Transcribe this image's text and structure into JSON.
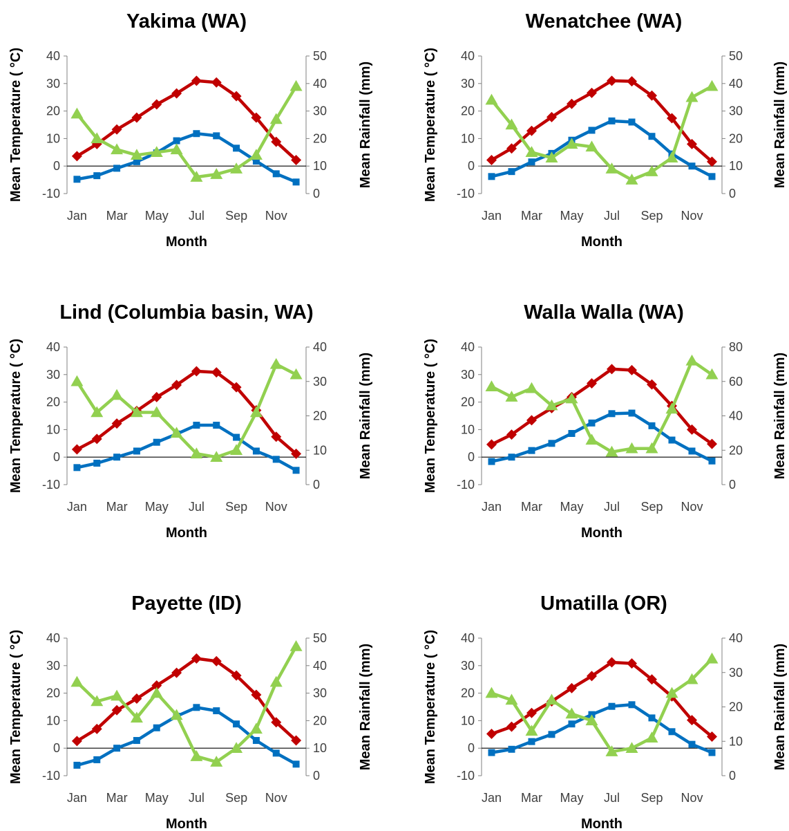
{
  "chart_data": [
    {
      "type": "line",
      "title": "Yakima (WA)",
      "xlabel": "Month",
      "ylabel": "Mean Temperature ( °C)",
      "y2label": "Mean Rainfall (mm)",
      "categories": [
        "Jan",
        "Feb",
        "Mar",
        "Apr",
        "May",
        "Jun",
        "Jul",
        "Aug",
        "Sep",
        "Oct",
        "Nov",
        "Dec"
      ],
      "x_tick_labels": [
        "Jan",
        "",
        "Mar",
        "",
        "May",
        "",
        "Jul",
        "",
        "Sep",
        "",
        "Nov",
        ""
      ],
      "ylim": [
        -10,
        40
      ],
      "y_ticks": [
        -10,
        0,
        10,
        20,
        30,
        40
      ],
      "y2lim": [
        0,
        50
      ],
      "y2_ticks": [
        0,
        10,
        20,
        30,
        40,
        50
      ],
      "series": [
        {
          "axis": "left",
          "color": "#C00000",
          "marker": "diamond",
          "values": [
            3.6,
            8.0,
            13.3,
            17.6,
            22.4,
            26.4,
            31.0,
            30.4,
            25.4,
            17.6,
            8.8,
            2.2
          ]
        },
        {
          "axis": "left",
          "color": "#0070C0",
          "marker": "square",
          "values": [
            -4.8,
            -3.5,
            -0.8,
            1.6,
            4.8,
            9.2,
            11.8,
            11.0,
            6.5,
            1.8,
            -2.8,
            -5.8
          ]
        },
        {
          "axis": "right",
          "color": "#92D050",
          "marker": "triangle",
          "values": [
            29,
            20,
            16,
            14,
            15,
            16,
            6,
            7,
            9,
            14,
            27,
            39
          ]
        }
      ]
    },
    {
      "type": "line",
      "title": "Wenatchee (WA)",
      "xlabel": "Month",
      "ylabel": "Mean Temperature ( °C)",
      "y2label": "Mean Rainfall (mm)",
      "categories": [
        "Jan",
        "Feb",
        "Mar",
        "Apr",
        "May",
        "Jun",
        "Jul",
        "Aug",
        "Sep",
        "Oct",
        "Nov",
        "Dec"
      ],
      "x_tick_labels": [
        "Jan",
        "",
        "Mar",
        "",
        "May",
        "",
        "Jul",
        "",
        "Sep",
        "",
        "Nov",
        ""
      ],
      "ylim": [
        -10,
        40
      ],
      "y_ticks": [
        -10,
        0,
        10,
        20,
        30,
        40
      ],
      "y2lim": [
        0,
        50
      ],
      "y2_ticks": [
        0,
        10,
        20,
        30,
        40,
        50
      ],
      "series": [
        {
          "axis": "left",
          "color": "#C00000",
          "marker": "diamond",
          "values": [
            2.2,
            6.4,
            12.8,
            17.8,
            22.6,
            26.6,
            31.0,
            30.8,
            25.6,
            17.4,
            8.0,
            1.6
          ]
        },
        {
          "axis": "left",
          "color": "#0070C0",
          "marker": "square",
          "values": [
            -3.8,
            -2.0,
            1.5,
            4.6,
            9.4,
            13.0,
            16.4,
            16.0,
            10.8,
            4.4,
            0.0,
            -3.8
          ]
        },
        {
          "axis": "right",
          "color": "#92D050",
          "marker": "triangle",
          "values": [
            34,
            25,
            15,
            13,
            18,
            17,
            9,
            5,
            8,
            13,
            35,
            39
          ]
        }
      ]
    },
    {
      "type": "line",
      "title": "Lind (Columbia basin, WA)",
      "xlabel": "Month",
      "ylabel": "Mean Temperature ( °C)",
      "y2label": "Mean Rainfall (mm)",
      "categories": [
        "Jan",
        "Feb",
        "Mar",
        "Apr",
        "May",
        "Jun",
        "Jul",
        "Aug",
        "Sep",
        "Oct",
        "Nov",
        "Dec"
      ],
      "x_tick_labels": [
        "Jan",
        "",
        "Mar",
        "",
        "May",
        "",
        "Jul",
        "",
        "Sep",
        "",
        "Nov",
        ""
      ],
      "ylim": [
        -10,
        40
      ],
      "y_ticks": [
        -10,
        0,
        10,
        20,
        30,
        40
      ],
      "y2lim": [
        0,
        40
      ],
      "y2_ticks": [
        0,
        10,
        20,
        30,
        40
      ],
      "series": [
        {
          "axis": "left",
          "color": "#C00000",
          "marker": "diamond",
          "values": [
            2.8,
            6.6,
            12.2,
            16.8,
            21.8,
            26.2,
            31.2,
            30.8,
            25.4,
            17.0,
            7.4,
            1.2
          ]
        },
        {
          "axis": "left",
          "color": "#0070C0",
          "marker": "square",
          "values": [
            -3.8,
            -2.2,
            0.0,
            2.2,
            5.4,
            8.4,
            11.6,
            11.6,
            7.2,
            2.2,
            -0.8,
            -4.8
          ]
        },
        {
          "axis": "right",
          "color": "#92D050",
          "marker": "triangle",
          "values": [
            30,
            21,
            26,
            21,
            21,
            15,
            9,
            8,
            10,
            21,
            35,
            32
          ]
        }
      ]
    },
    {
      "type": "line",
      "title": "Walla Walla (WA)",
      "xlabel": "Month",
      "ylabel": "Mean Temperature ( °C)",
      "y2label": "Mean Rainfall (mm)",
      "categories": [
        "Jan",
        "Feb",
        "Mar",
        "Apr",
        "May",
        "Jun",
        "Jul",
        "Aug",
        "Sep",
        "Oct",
        "Nov",
        "Dec"
      ],
      "x_tick_labels": [
        "Jan",
        "",
        "Mar",
        "",
        "May",
        "",
        "Jul",
        "",
        "Sep",
        "",
        "Nov",
        ""
      ],
      "ylim": [
        -10,
        40
      ],
      "y_ticks": [
        -10,
        0,
        10,
        20,
        30,
        40
      ],
      "y2lim": [
        0,
        80
      ],
      "y2_ticks": [
        0,
        20,
        40,
        60,
        80
      ],
      "series": [
        {
          "axis": "left",
          "color": "#C00000",
          "marker": "diamond",
          "values": [
            4.6,
            8.2,
            13.4,
            17.8,
            21.8,
            26.8,
            32.0,
            31.6,
            26.4,
            18.6,
            10.0,
            4.8
          ]
        },
        {
          "axis": "left",
          "color": "#0070C0",
          "marker": "square",
          "values": [
            -1.6,
            0.0,
            2.4,
            5.0,
            8.6,
            12.4,
            15.8,
            16.0,
            11.4,
            6.2,
            2.2,
            -1.4
          ]
        },
        {
          "axis": "right",
          "color": "#92D050",
          "marker": "triangle",
          "values": [
            57,
            51,
            56,
            46,
            50,
            26,
            19,
            21,
            21,
            44,
            72,
            64
          ]
        }
      ]
    },
    {
      "type": "line",
      "title": "Payette (ID)",
      "xlabel": "Month",
      "ylabel": "Mean Temperature ( °C)",
      "y2label": "Mean Rainfall (mm)",
      "categories": [
        "Jan",
        "Feb",
        "Mar",
        "Apr",
        "May",
        "Jun",
        "Jul",
        "Aug",
        "Sep",
        "Oct",
        "Nov",
        "Dec"
      ],
      "x_tick_labels": [
        "Jan",
        "",
        "Mar",
        "",
        "May",
        "",
        "Jul",
        "",
        "Sep",
        "",
        "Nov",
        ""
      ],
      "ylim": [
        -10,
        40
      ],
      "y_ticks": [
        -10,
        0,
        10,
        20,
        30,
        40
      ],
      "y2lim": [
        0,
        50
      ],
      "y2_ticks": [
        0,
        10,
        20,
        30,
        40,
        50
      ],
      "series": [
        {
          "axis": "left",
          "color": "#C00000",
          "marker": "diamond",
          "values": [
            2.6,
            7.0,
            13.8,
            18.0,
            22.8,
            27.4,
            32.6,
            31.6,
            26.4,
            19.4,
            9.4,
            2.8
          ]
        },
        {
          "axis": "left",
          "color": "#0070C0",
          "marker": "square",
          "values": [
            -6.2,
            -4.2,
            0.0,
            2.8,
            7.4,
            11.6,
            14.8,
            13.6,
            8.8,
            2.8,
            -1.8,
            -5.8
          ]
        },
        {
          "axis": "right",
          "color": "#92D050",
          "marker": "triangle",
          "values": [
            34,
            27,
            29,
            21,
            30,
            22,
            7,
            5,
            10,
            17,
            34,
            47
          ]
        }
      ]
    },
    {
      "type": "line",
      "title": "Umatilla (OR)",
      "xlabel": "Month",
      "ylabel": "Mean Temperature ( °C)",
      "y2label": "Mean Rainfall (mm)",
      "categories": [
        "Jan",
        "Feb",
        "Mar",
        "Apr",
        "May",
        "Jun",
        "Jul",
        "Aug",
        "Sep",
        "Oct",
        "Nov",
        "Dec"
      ],
      "x_tick_labels": [
        "Jan",
        "",
        "Mar",
        "",
        "May",
        "",
        "Jul",
        "",
        "Sep",
        "",
        "Nov",
        ""
      ],
      "ylim": [
        -10,
        40
      ],
      "y_ticks": [
        -10,
        0,
        10,
        20,
        30,
        40
      ],
      "y2lim": [
        0,
        40
      ],
      "y2_ticks": [
        0,
        10,
        20,
        30,
        40
      ],
      "series": [
        {
          "axis": "left",
          "color": "#C00000",
          "marker": "diamond",
          "values": [
            5.2,
            7.8,
            12.8,
            17.0,
            21.8,
            26.2,
            31.2,
            30.8,
            25.0,
            18.8,
            10.2,
            4.2
          ]
        },
        {
          "axis": "left",
          "color": "#0070C0",
          "marker": "square",
          "values": [
            -1.6,
            -0.4,
            2.4,
            5.0,
            8.8,
            12.2,
            15.2,
            15.8,
            11.0,
            6.0,
            1.4,
            -1.6
          ]
        },
        {
          "axis": "right",
          "color": "#92D050",
          "marker": "triangle",
          "values": [
            24,
            22,
            13,
            22,
            18,
            16,
            7,
            8,
            11,
            24,
            28,
            34
          ]
        }
      ]
    }
  ]
}
